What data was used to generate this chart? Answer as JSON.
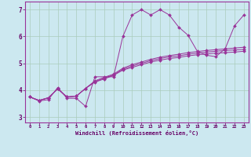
{
  "xlabel": "Windchill (Refroidissement éolien,°C)",
  "ylabel": "",
  "bg_color": "#cce8f0",
  "line_color": "#993399",
  "grid_color": "#aaccbb",
  "xlim": [
    -0.5,
    23.5
  ],
  "ylim": [
    2.8,
    7.3
  ],
  "xtick_labels": [
    "0",
    "1",
    "2",
    "3",
    "4",
    "5",
    "6",
    "7",
    "8",
    "9",
    "10",
    "11",
    "12",
    "13",
    "14",
    "15",
    "16",
    "17",
    "18",
    "19",
    "20",
    "21",
    "22",
    "23"
  ],
  "yticks": [
    3,
    4,
    5,
    6,
    7
  ],
  "series": [
    [
      3.75,
      3.6,
      3.65,
      4.1,
      3.7,
      3.7,
      3.4,
      4.5,
      4.5,
      4.5,
      6.0,
      6.8,
      7.0,
      6.8,
      7.0,
      6.8,
      6.35,
      6.05,
      5.45,
      5.3,
      5.25,
      5.55,
      6.4,
      6.8
    ],
    [
      3.75,
      3.62,
      3.72,
      4.05,
      3.75,
      3.78,
      4.07,
      4.3,
      4.42,
      4.55,
      4.75,
      4.85,
      4.95,
      5.05,
      5.12,
      5.18,
      5.22,
      5.28,
      5.32,
      5.35,
      5.38,
      5.4,
      5.42,
      5.45
    ],
    [
      3.75,
      3.62,
      3.72,
      4.05,
      3.75,
      3.78,
      4.07,
      4.32,
      4.45,
      4.57,
      4.78,
      4.9,
      5.0,
      5.1,
      5.18,
      5.24,
      5.28,
      5.34,
      5.38,
      5.42,
      5.45,
      5.48,
      5.5,
      5.52
    ],
    [
      3.75,
      3.62,
      3.72,
      4.05,
      3.75,
      3.78,
      4.07,
      4.35,
      4.48,
      4.6,
      4.82,
      4.95,
      5.05,
      5.15,
      5.23,
      5.29,
      5.34,
      5.4,
      5.44,
      5.48,
      5.51,
      5.54,
      5.57,
      5.6
    ]
  ]
}
